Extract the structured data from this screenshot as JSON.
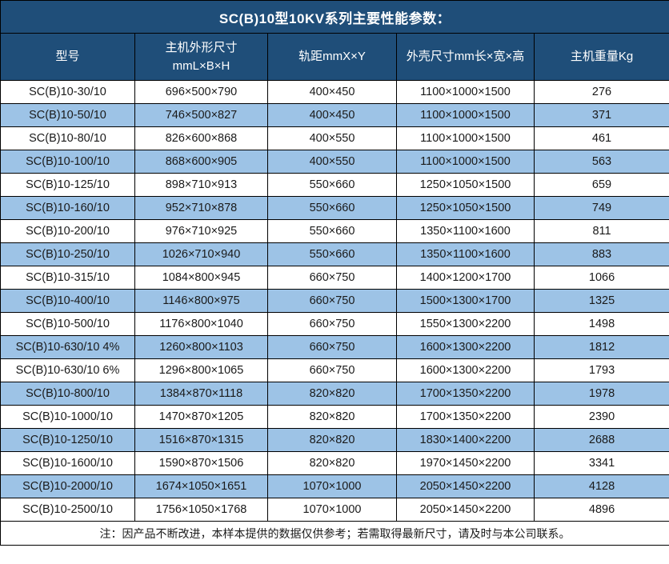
{
  "colors": {
    "header_bg": "#1F4E79",
    "header_text": "#FFFFFF",
    "row_alt_bg": "#9DC3E6",
    "row_bg": "#FFFFFF",
    "body_text": "#1A1A1A",
    "border": "#000000"
  },
  "table": {
    "title": "SC(B)10型10KV系列主要性能参数：",
    "columns": [
      "型号",
      "主机外形尺寸\nmmL×B×H",
      "轨距mmX×Y",
      "外壳尺寸mm长×宽×高",
      "主机重量Kg"
    ],
    "rows": [
      [
        "SC(B)10-30/10",
        "696×500×790",
        "400×450",
        "1100×1000×1500",
        "276"
      ],
      [
        "SC(B)10-50/10",
        "746×500×827",
        "400×450",
        "1100×1000×1500",
        "371"
      ],
      [
        "SC(B)10-80/10",
        "826×600×868",
        "400×550",
        "1100×1000×1500",
        "461"
      ],
      [
        "SC(B)10-100/10",
        "868×600×905",
        "400×550",
        "1100×1000×1500",
        "563"
      ],
      [
        "SC(B)10-125/10",
        "898×710×913",
        "550×660",
        "1250×1050×1500",
        "659"
      ],
      [
        "SC(B)10-160/10",
        "952×710×878",
        "550×660",
        "1250×1050×1500",
        "749"
      ],
      [
        "SC(B)10-200/10",
        "976×710×925",
        "550×660",
        "1350×1100×1600",
        "811"
      ],
      [
        "SC(B)10-250/10",
        "1026×710×940",
        "550×660",
        "1350×1100×1600",
        "883"
      ],
      [
        "SC(B)10-315/10",
        "1084×800×945",
        "660×750",
        "1400×1200×1700",
        "1066"
      ],
      [
        "SC(B)10-400/10",
        "1146×800×975",
        "660×750",
        "1500×1300×1700",
        "1325"
      ],
      [
        "SC(B)10-500/10",
        "1176×800×1040",
        "660×750",
        "1550×1300×2200",
        "1498"
      ],
      [
        "SC(B)10-630/10 4%",
        "1260×800×1103",
        "660×750",
        "1600×1300×2200",
        "1812"
      ],
      [
        "SC(B)10-630/10 6%",
        "1296×800×1065",
        "660×750",
        "1600×1300×2200",
        "1793"
      ],
      [
        "SC(B)10-800/10",
        "1384×870×1118",
        "820×820",
        "1700×1350×2200",
        "1978"
      ],
      [
        "SC(B)10-1000/10",
        "1470×870×1205",
        "820×820",
        "1700×1350×2200",
        "2390"
      ],
      [
        "SC(B)10-1250/10",
        "1516×870×1315",
        "820×820",
        "1830×1400×2200",
        "2688"
      ],
      [
        "SC(B)10-1600/10",
        "1590×870×1506",
        "820×820",
        "1970×1450×2200",
        "3341"
      ],
      [
        "SC(B)10-2000/10",
        "1674×1050×1651",
        "1070×1000",
        "2050×1450×2200",
        "4128"
      ],
      [
        "SC(B)10-2500/10",
        "1756×1050×1768",
        "1070×1000",
        "2050×1450×2200",
        "4896"
      ]
    ],
    "note": "注：因产品不断改进，本样本提供的数据仅供参考；若需取得最新尺寸，请及时与本公司联系。"
  }
}
